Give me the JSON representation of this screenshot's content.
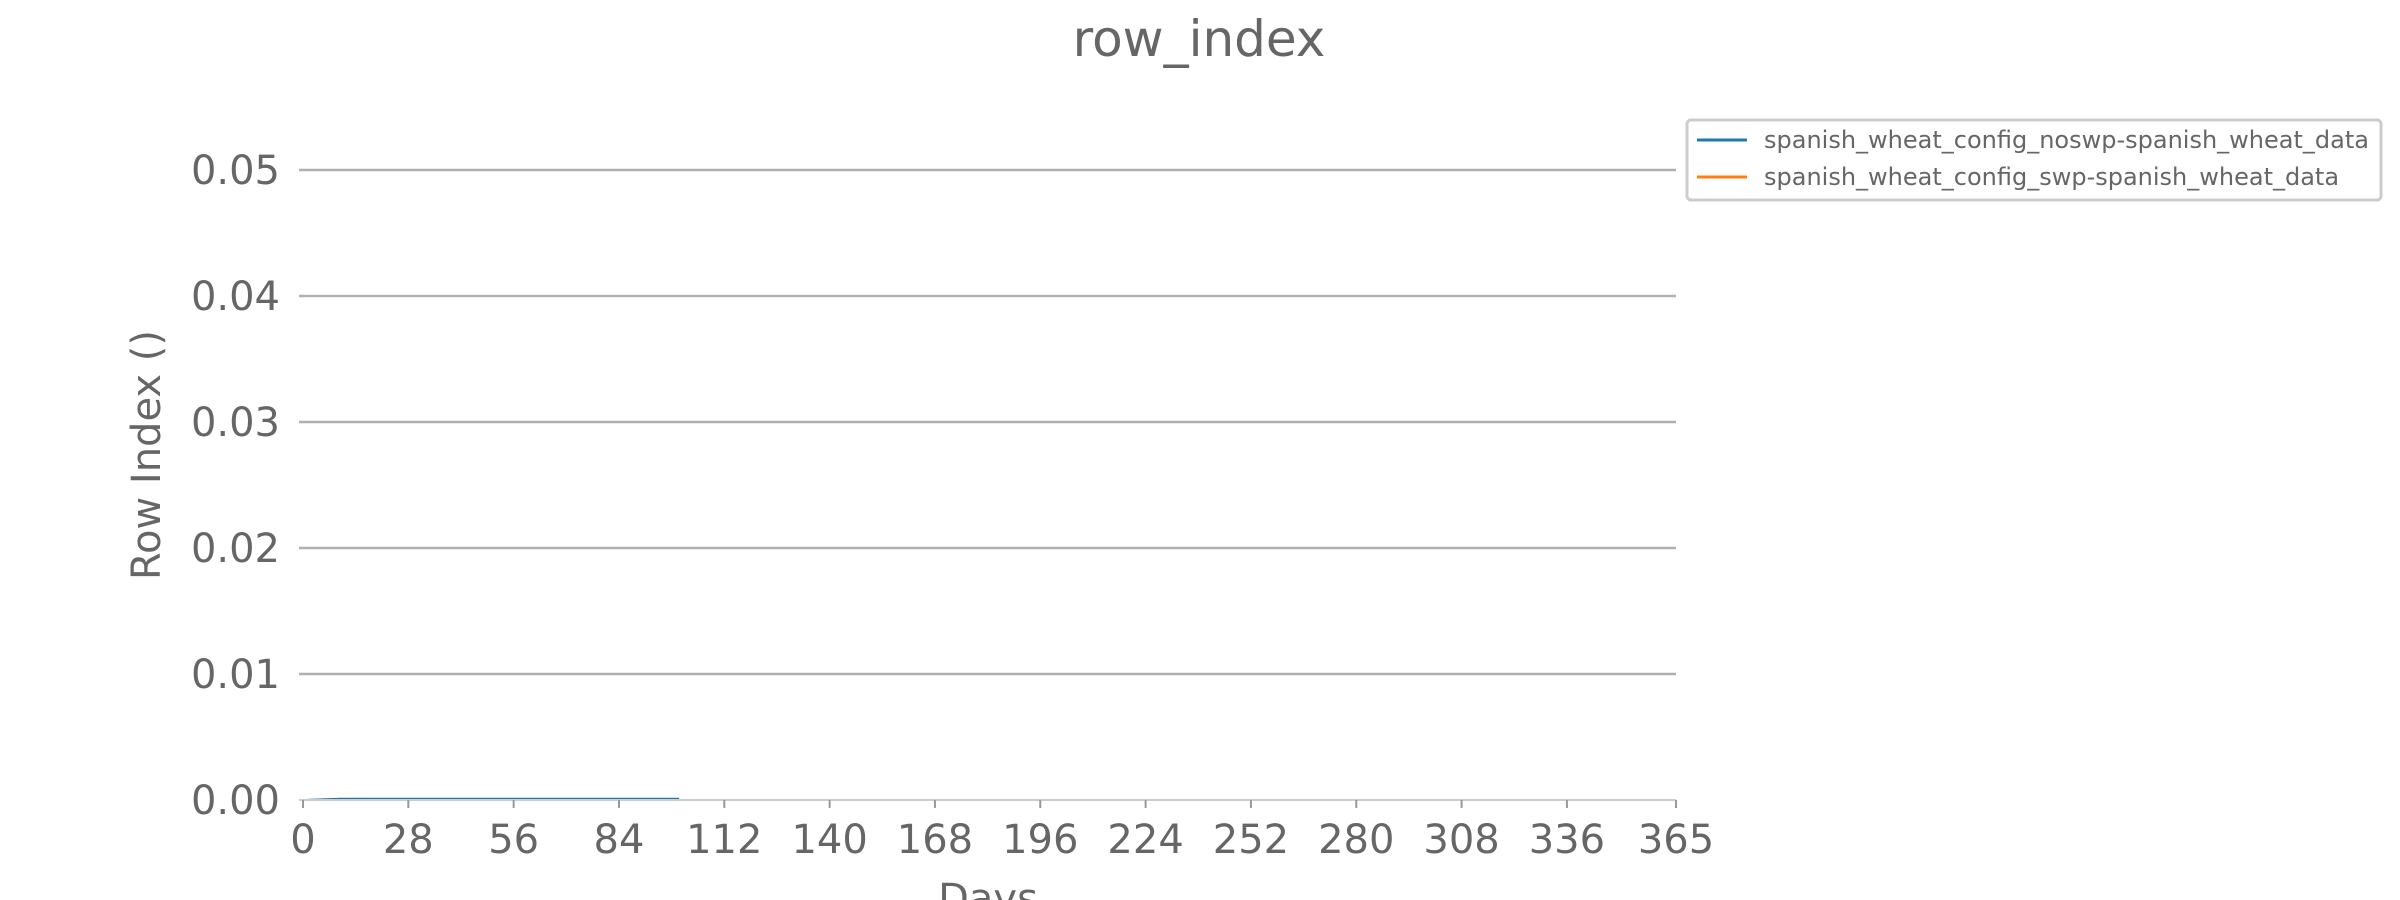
{
  "chart_data": {
    "type": "line",
    "title": "row_index",
    "xlabel": "Days",
    "ylabel": "Row Index ()",
    "xlim": [
      0,
      365
    ],
    "ylim": [
      0,
      0.05
    ],
    "x_ticks": [
      0,
      28,
      56,
      84,
      112,
      140,
      168,
      196,
      224,
      252,
      280,
      308,
      336,
      365
    ],
    "y_ticks": [
      0.0,
      0.01,
      0.02,
      0.03,
      0.04,
      0.05
    ],
    "x_tick_labels": [
      "0",
      "28",
      "56",
      "84",
      "112",
      "140",
      "168",
      "196",
      "224",
      "252",
      "280",
      "308",
      "336",
      "365"
    ],
    "y_tick_labels": [
      "0.00",
      "0.01",
      "0.02",
      "0.03",
      "0.04",
      "0.05"
    ],
    "grid": "horizontal",
    "legend_position": "outside-top-right",
    "series": [
      {
        "name": "spanish_wheat_config_noswp-spanish_wheat_data",
        "color": "#1f77b4",
        "x": [
          0,
          1,
          2,
          3,
          4,
          5,
          6,
          7,
          8,
          9,
          10,
          11,
          12,
          13,
          14,
          15,
          16,
          17,
          18,
          19,
          20,
          21,
          22,
          23,
          24,
          25,
          26,
          27,
          28,
          29,
          30,
          31,
          32,
          33,
          34,
          35,
          36,
          37,
          38,
          39,
          40,
          41,
          42,
          43,
          44,
          45,
          46,
          47,
          48,
          49,
          50,
          51,
          52,
          53,
          54,
          55,
          56,
          57,
          58,
          59,
          60,
          61,
          62,
          63,
          64,
          65,
          66,
          67,
          68,
          69,
          70,
          71,
          72,
          73,
          74,
          75,
          76,
          77,
          78,
          79,
          80,
          81,
          82,
          83,
          84,
          85,
          86,
          87,
          88,
          89,
          90,
          91,
          92,
          93,
          94,
          95,
          96,
          97,
          98,
          99,
          100
        ],
        "y": [
          0,
          1e-05,
          2e-05,
          3e-05,
          4e-05,
          5e-05,
          6e-05,
          7e-05,
          8e-05,
          9e-05,
          0.0001,
          0.0001,
          0.0001,
          0.0001,
          0.0001,
          0.0001,
          0.0001,
          0.0001,
          0.0001,
          0.0001,
          0.0001,
          0.0001,
          0.0001,
          0.0001,
          0.0001,
          0.0001,
          0.0001,
          0.0001,
          0.0001,
          0.0001,
          0.0001,
          0.0001,
          0.0001,
          0.0001,
          0.0001,
          0.0001,
          0.0001,
          0.0001,
          0.0001,
          0.0001,
          0.0001,
          0.0001,
          0.0001,
          0.0001,
          0.0001,
          0.0001,
          0.0001,
          0.0001,
          0.0001,
          0.0001,
          0.0001,
          0.0001,
          0.0001,
          0.0001,
          0.0001,
          0.0001,
          0.0001,
          0.0001,
          0.0001,
          0.0001,
          0.0001,
          0.0001,
          0.0001,
          0.0001,
          0.0001,
          0.0001,
          0.0001,
          0.0001,
          0.0001,
          0.0001,
          0.0001,
          0.0001,
          0.0001,
          0.0001,
          0.0001,
          0.0001,
          0.0001,
          0.0001,
          0.0001,
          0.0001,
          0.0001,
          0.0001,
          0.0001,
          0.0001,
          0.0001,
          0.0001,
          0.0001,
          0.0001,
          0.0001,
          0.0001,
          0.0001,
          0.0001,
          0.0001,
          0.0001,
          0.0001,
          0.0001,
          0.0001,
          0.0001,
          0.0001,
          0.0001,
          0.0001
        ]
      },
      {
        "name": "spanish_wheat_config_swp-spanish_wheat_data",
        "color": "#ff7f0e",
        "x": [
          0,
          1,
          2,
          3,
          4,
          5,
          6,
          7,
          8,
          9,
          10,
          11,
          12,
          13,
          14,
          15,
          16,
          17,
          18,
          19,
          20,
          21,
          22,
          23,
          24,
          25,
          26,
          27,
          28,
          29,
          30,
          31,
          32,
          33,
          34,
          35,
          36,
          37,
          38,
          39,
          40,
          41,
          42,
          43,
          44,
          45,
          46,
          47,
          48,
          49,
          50,
          51,
          52,
          53,
          54,
          55,
          56,
          57,
          58,
          59,
          60,
          61,
          62,
          63,
          64,
          65,
          66,
          67,
          68,
          69,
          70,
          71,
          72,
          73,
          74,
          75,
          76,
          77,
          78,
          79,
          80,
          81,
          82,
          83,
          84,
          85,
          86,
          87,
          88,
          89,
          90,
          91,
          92,
          93,
          94,
          95,
          96,
          97,
          98,
          99,
          100
        ],
        "y": [
          0,
          0,
          0,
          0,
          0,
          0,
          0,
          0,
          0,
          0,
          0,
          0,
          0,
          0,
          0,
          0,
          0,
          0,
          0,
          0,
          0,
          0,
          0,
          0,
          0,
          0,
          0,
          0,
          0,
          0,
          0,
          0,
          0,
          0,
          0,
          0,
          0,
          0,
          0,
          0,
          0,
          0,
          0,
          0,
          0,
          0,
          0,
          0,
          0,
          0,
          0,
          0,
          0,
          0,
          0,
          0,
          0,
          0,
          0,
          0,
          0,
          0,
          0,
          0,
          0,
          0,
          0,
          0,
          0,
          0,
          0,
          0,
          0,
          0,
          0,
          0,
          0,
          0,
          0,
          0,
          0,
          0,
          0,
          0,
          0,
          0,
          0,
          0,
          0,
          0,
          0,
          0,
          0,
          0,
          0,
          0,
          0,
          0,
          0,
          0,
          0
        ]
      }
    ]
  }
}
